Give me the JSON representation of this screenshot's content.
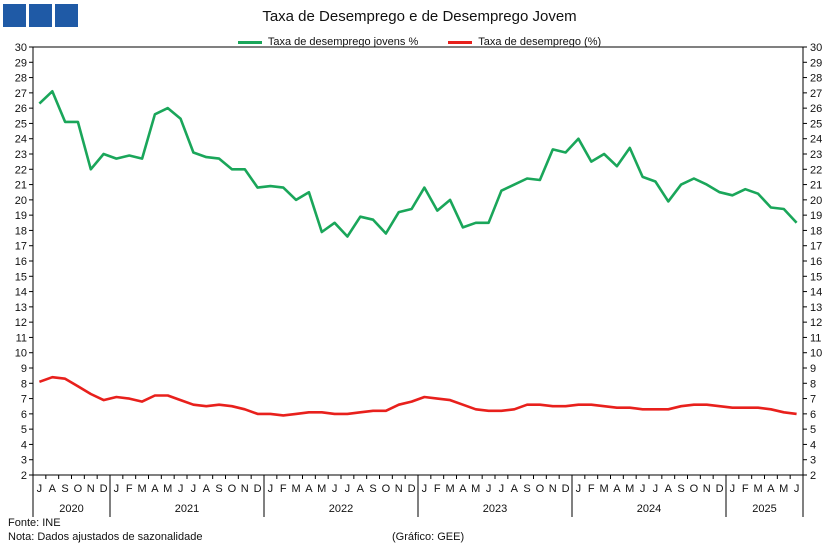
{
  "title": "Taxa de Desemprego e de Desemprego Jovem",
  "logo_icon": "ministry-logo-squares",
  "legend": {
    "youth": "Taxa de desemprego jovens %",
    "total": "Taxa de desemprego (%)"
  },
  "footer": {
    "source": "Fonte: INE",
    "note": "Nota: Dados ajustados de sazonalidade",
    "credit": "(Gráfico: GEE)"
  },
  "colors": {
    "youth": "#1aa65a",
    "total": "#e8201c",
    "logo": "#1f5aa6"
  },
  "chart_data": {
    "type": "line",
    "title": "Taxa de Desemprego e de Desemprego Jovem",
    "ylim": [
      2,
      30
    ],
    "y_ticks": [
      2,
      3,
      4,
      5,
      6,
      7,
      8,
      9,
      10,
      11,
      12,
      13,
      14,
      15,
      16,
      17,
      18,
      19,
      20,
      21,
      22,
      23,
      24,
      25,
      26,
      27,
      28,
      29,
      30
    ],
    "grid": false,
    "legend_position": "top-center",
    "x_months": [
      "J",
      "A",
      "S",
      "O",
      "N",
      "D",
      "J",
      "F",
      "M",
      "A",
      "M",
      "J",
      "J",
      "A",
      "S",
      "O",
      "N",
      "D",
      "J",
      "F",
      "M",
      "A",
      "M",
      "J",
      "J",
      "A",
      "S",
      "O",
      "N",
      "D",
      "J",
      "F",
      "M",
      "A",
      "M",
      "J",
      "J",
      "A",
      "S",
      "O",
      "N",
      "D",
      "J",
      "F",
      "M",
      "A",
      "M",
      "J",
      "J",
      "A",
      "S",
      "O",
      "N",
      "D",
      "J",
      "F",
      "M",
      "A",
      "M",
      "J"
    ],
    "years": [
      {
        "label": "2020",
        "start": 0,
        "count": 6
      },
      {
        "label": "2021",
        "start": 6,
        "count": 12
      },
      {
        "label": "2022",
        "start": 18,
        "count": 12
      },
      {
        "label": "2023",
        "start": 30,
        "count": 12
      },
      {
        "label": "2024",
        "start": 42,
        "count": 12
      },
      {
        "label": "2025",
        "start": 54,
        "count": 6
      }
    ],
    "series": [
      {
        "name": "Taxa de desemprego jovens %",
        "color": "#1aa65a",
        "values": [
          26.3,
          27.1,
          25.1,
          25.1,
          22.0,
          23.0,
          22.7,
          22.9,
          22.7,
          25.6,
          26.0,
          25.3,
          23.1,
          22.8,
          22.7,
          22.0,
          22.0,
          20.8,
          20.9,
          20.8,
          20.0,
          20.5,
          17.9,
          18.5,
          17.6,
          18.9,
          18.7,
          17.8,
          19.2,
          19.4,
          20.8,
          19.3,
          20.0,
          18.2,
          18.5,
          18.5,
          20.6,
          21.0,
          21.4,
          21.3,
          23.3,
          23.1,
          24.0,
          22.5,
          23.0,
          22.2,
          23.4,
          21.5,
          21.2,
          19.9,
          21.0,
          21.4,
          21.0,
          20.5,
          20.3,
          20.7,
          20.4,
          19.5,
          19.4,
          18.5
        ]
      },
      {
        "name": "Taxa de desemprego (%)",
        "color": "#e8201c",
        "values": [
          8.1,
          8.4,
          8.3,
          7.8,
          7.3,
          6.9,
          7.1,
          7.0,
          6.8,
          7.2,
          7.2,
          6.9,
          6.6,
          6.5,
          6.6,
          6.5,
          6.3,
          6.0,
          6.0,
          5.9,
          6.0,
          6.1,
          6.1,
          6.0,
          6.0,
          6.1,
          6.2,
          6.2,
          6.6,
          6.8,
          7.1,
          7.0,
          6.9,
          6.6,
          6.3,
          6.2,
          6.2,
          6.3,
          6.6,
          6.6,
          6.5,
          6.5,
          6.6,
          6.6,
          6.5,
          6.4,
          6.4,
          6.3,
          6.3,
          6.3,
          6.5,
          6.6,
          6.6,
          6.5,
          6.4,
          6.4,
          6.4,
          6.3,
          6.1,
          6.0
        ]
      }
    ]
  }
}
